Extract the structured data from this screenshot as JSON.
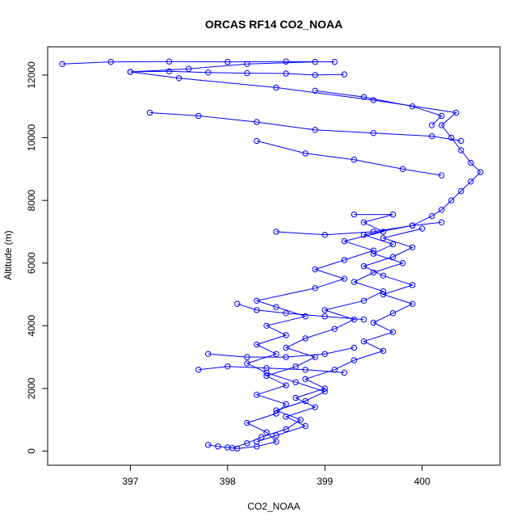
{
  "chart_data": {
    "type": "scatter",
    "title": "ORCAS RF14 CO2_NOAA",
    "xlabel": "CO2_NOAA",
    "ylabel": "Altitude (m)",
    "xlim": [
      396.15,
      400.8
    ],
    "ylim": [
      -450,
      12900
    ],
    "x_ticks": [
      397,
      398,
      399,
      400
    ],
    "y_ticks": [
      0,
      2000,
      4000,
      6000,
      8000,
      10000,
      12000
    ],
    "x_tick_labels": [
      "397",
      "398",
      "399",
      "400"
    ],
    "y_tick_labels": [
      "0",
      "2000",
      "4000",
      "6000",
      "8000",
      "10000",
      "12000"
    ],
    "marker": "open-circle",
    "connected": true,
    "series_color": "#0000ff",
    "series": [
      {
        "points": [
          [
            398.0,
            120
          ],
          [
            398.1,
            80
          ],
          [
            398.3,
            150
          ],
          [
            398.5,
            300
          ],
          [
            398.4,
            600
          ],
          [
            398.2,
            900
          ],
          [
            398.5,
            1200
          ],
          [
            398.6,
            1500
          ],
          [
            398.3,
            1800
          ],
          [
            398.6,
            2100
          ],
          [
            398.4,
            2400
          ],
          [
            398.7,
            2700
          ],
          [
            398.9,
            3000
          ],
          [
            398.6,
            3300
          ],
          [
            398.8,
            3600
          ],
          [
            399.1,
            3900
          ],
          [
            399.3,
            4200
          ],
          [
            399.0,
            4500
          ],
          [
            399.4,
            4800
          ],
          [
            399.6,
            5100
          ],
          [
            399.3,
            5400
          ],
          [
            399.5,
            5700
          ],
          [
            399.8,
            6000
          ],
          [
            399.5,
            6300
          ],
          [
            399.7,
            6600
          ],
          [
            399.4,
            6900
          ],
          [
            399.9,
            7200
          ],
          [
            400.1,
            7500
          ],
          [
            400.2,
            7700
          ],
          [
            400.3,
            8000
          ],
          [
            400.4,
            8300
          ],
          [
            400.5,
            8600
          ],
          [
            400.6,
            8900
          ],
          [
            400.5,
            9200
          ],
          [
            400.4,
            9600
          ],
          [
            400.3,
            10000
          ],
          [
            400.2,
            10400
          ],
          [
            400.35,
            10800
          ],
          [
            399.5,
            11200
          ],
          [
            398.5,
            11600
          ],
          [
            397.5,
            11900
          ],
          [
            397.0,
            12100
          ],
          [
            397.6,
            12200
          ],
          [
            398.2,
            12350
          ],
          [
            398.9,
            12420
          ]
        ]
      },
      {
        "points": [
          [
            397.8,
            200
          ],
          [
            397.9,
            150
          ],
          [
            398.05,
            100
          ],
          [
            398.2,
            250
          ],
          [
            398.35,
            450
          ],
          [
            398.6,
            700
          ],
          [
            398.75,
            1000
          ],
          [
            398.5,
            1300
          ],
          [
            398.8,
            1600
          ],
          [
            399.0,
            1900
          ],
          [
            398.7,
            2200
          ],
          [
            398.4,
            2500
          ],
          [
            398.2,
            2800
          ],
          [
            398.5,
            3100
          ],
          [
            398.3,
            3400
          ],
          [
            398.6,
            3700
          ],
          [
            398.4,
            4000
          ],
          [
            398.8,
            4300
          ],
          [
            398.5,
            4600
          ],
          [
            398.3,
            4800
          ],
          [
            398.9,
            5200
          ],
          [
            399.2,
            5500
          ],
          [
            398.9,
            5800
          ],
          [
            399.2,
            6100
          ],
          [
            399.5,
            6400
          ],
          [
            399.2,
            6700
          ],
          [
            399.6,
            7000
          ],
          [
            399.4,
            7300
          ],
          [
            399.7,
            7550
          ],
          [
            399.3,
            7550
          ]
        ]
      },
      {
        "points": [
          [
            400.0,
            7100
          ],
          [
            399.6,
            6800
          ],
          [
            399.9,
            6500
          ],
          [
            399.7,
            6200
          ],
          [
            399.4,
            5900
          ],
          [
            399.6,
            5600
          ],
          [
            399.9,
            5300
          ],
          [
            399.6,
            5000
          ],
          [
            399.9,
            4700
          ],
          [
            399.7,
            4400
          ],
          [
            399.5,
            4100
          ],
          [
            399.7,
            3800
          ],
          [
            399.4,
            3500
          ],
          [
            399.6,
            3200
          ],
          [
            399.3,
            2900
          ],
          [
            399.1,
            2600
          ],
          [
            398.8,
            2300
          ],
          [
            399.0,
            2000
          ],
          [
            398.7,
            1700
          ],
          [
            398.9,
            1400
          ],
          [
            398.6,
            1100
          ],
          [
            398.8,
            800
          ],
          [
            398.5,
            500
          ],
          [
            398.3,
            300
          ]
        ]
      },
      {
        "points": [
          [
            396.3,
            12350
          ],
          [
            396.8,
            12420
          ],
          [
            397.4,
            12430
          ],
          [
            398.0,
            12420
          ],
          [
            398.6,
            12430
          ],
          [
            399.1,
            12420
          ]
        ]
      },
      {
        "points": [
          [
            397.0,
            12100
          ],
          [
            397.4,
            12120
          ],
          [
            397.8,
            12080
          ],
          [
            398.2,
            12060
          ],
          [
            398.6,
            12050
          ],
          [
            398.9,
            12000
          ],
          [
            399.2,
            12020
          ]
        ]
      },
      {
        "points": [
          [
            398.9,
            11500
          ],
          [
            399.4,
            11300
          ],
          [
            399.9,
            11000
          ],
          [
            400.2,
            10700
          ],
          [
            400.1,
            10400
          ]
        ]
      },
      {
        "points": [
          [
            397.2,
            10800
          ],
          [
            397.7,
            10700
          ],
          [
            398.3,
            10500
          ],
          [
            398.9,
            10250
          ],
          [
            399.5,
            10150
          ],
          [
            400.1,
            10050
          ],
          [
            400.4,
            9900
          ]
        ]
      },
      {
        "points": [
          [
            398.3,
            9900
          ],
          [
            398.8,
            9500
          ],
          [
            399.3,
            9300
          ],
          [
            399.8,
            9000
          ],
          [
            400.2,
            8800
          ]
        ]
      },
      {
        "points": [
          [
            398.5,
            7000
          ],
          [
            399.0,
            6900
          ],
          [
            399.5,
            7000
          ],
          [
            399.9,
            7200
          ],
          [
            400.2,
            7300
          ]
        ]
      },
      {
        "points": [
          [
            397.7,
            2600
          ],
          [
            398.0,
            2700
          ],
          [
            398.4,
            2650
          ],
          [
            398.8,
            2600
          ],
          [
            399.2,
            2500
          ]
        ]
      },
      {
        "points": [
          [
            397.8,
            3100
          ],
          [
            398.2,
            3000
          ],
          [
            398.6,
            3000
          ],
          [
            399.0,
            3100
          ],
          [
            399.3,
            3300
          ]
        ]
      },
      {
        "points": [
          [
            398.1,
            4700
          ],
          [
            398.3,
            4500
          ],
          [
            398.6,
            4400
          ],
          [
            399.0,
            4300
          ],
          [
            399.4,
            4200
          ]
        ]
      }
    ]
  }
}
